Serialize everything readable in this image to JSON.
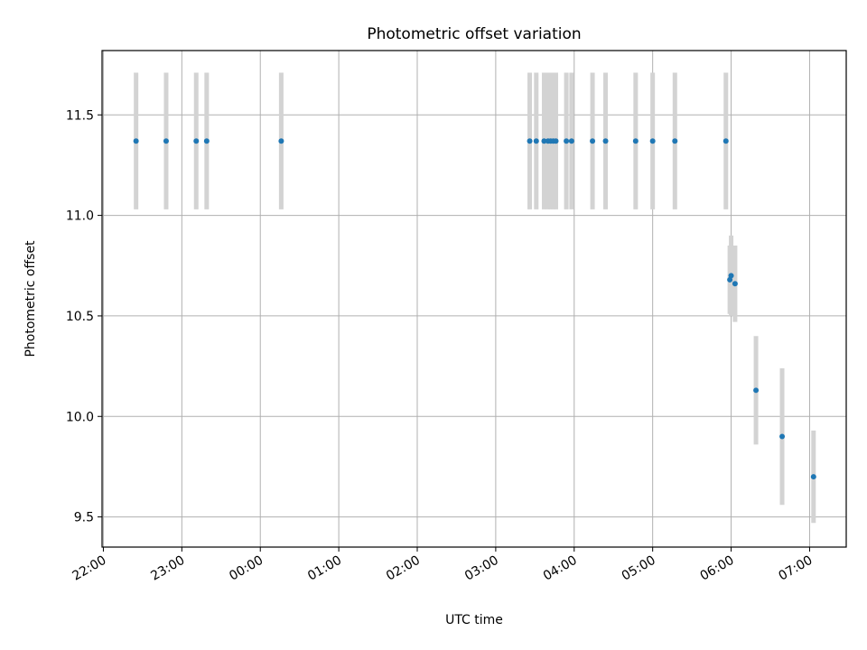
{
  "chart_data": {
    "type": "scatter",
    "title": "Photometric offset variation",
    "xlabel": "UTC time",
    "ylabel": "Photometric offset",
    "x_ticks": [
      "22:00",
      "23:00",
      "00:00",
      "01:00",
      "02:00",
      "03:00",
      "04:00",
      "05:00",
      "06:00",
      "07:00"
    ],
    "y_ticks": [
      "9.5",
      "10.0",
      "10.5",
      "11.0",
      "11.5"
    ],
    "y_tick_values": [
      9.5,
      10.0,
      10.5,
      11.0,
      11.5
    ],
    "xlim": [
      "21:59",
      "07:28"
    ],
    "ylim": [
      9.35,
      11.82
    ],
    "grid": true,
    "marker_color": "#1f77b4",
    "errorbar_color": "#d3d3d3",
    "series": [
      {
        "x": [
          "22:25",
          "22:48",
          "23:11",
          "23:19",
          "00:16",
          "03:26",
          "03:31",
          "03:37",
          "03:40",
          "03:42",
          "03:44",
          "03:46",
          "03:54",
          "03:58",
          "04:14",
          "04:24",
          "04:47",
          "05:00",
          "05:17",
          "05:56",
          "05:59",
          "06:00",
          "06:03",
          "06:19",
          "06:39",
          "07:03"
        ],
        "y": [
          11.37,
          11.37,
          11.37,
          11.37,
          11.37,
          11.37,
          11.37,
          11.37,
          11.37,
          11.37,
          11.37,
          11.37,
          11.37,
          11.37,
          11.37,
          11.37,
          11.37,
          11.37,
          11.37,
          11.37,
          10.68,
          10.7,
          10.66,
          10.13,
          9.9,
          9.7
        ],
        "yerr": [
          0.34,
          0.34,
          0.34,
          0.34,
          0.34,
          0.34,
          0.34,
          0.34,
          0.34,
          0.34,
          0.34,
          0.34,
          0.34,
          0.34,
          0.34,
          0.34,
          0.34,
          0.34,
          0.34,
          0.34,
          0.17,
          0.2,
          0.19,
          0.27,
          0.34,
          0.23
        ]
      }
    ]
  }
}
